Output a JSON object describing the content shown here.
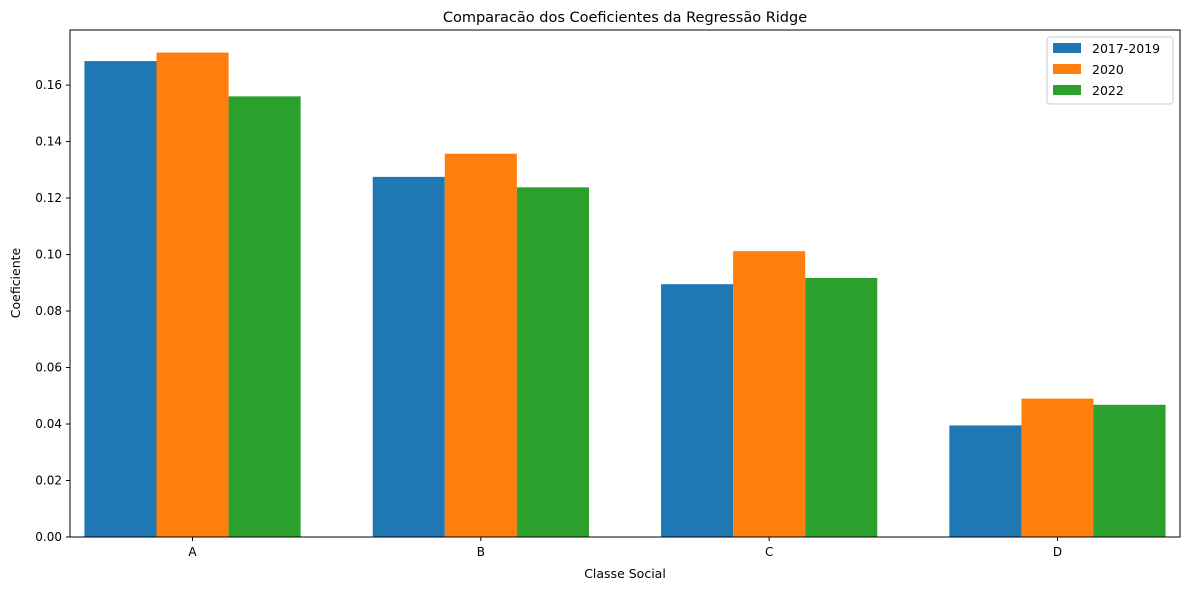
{
  "chart_data": {
    "type": "bar",
    "title": "Comparacão dos Coeficientes da Regressão Ridge",
    "xlabel": "Classe Social",
    "ylabel": "Coeficiente",
    "categories": [
      "A",
      "B",
      "C",
      "D"
    ],
    "series": [
      {
        "name": "2017-2019",
        "color": "#1f77b4",
        "values": [
          0.1685,
          0.1275,
          0.0895,
          0.0395
        ]
      },
      {
        "name": "2020",
        "color": "#ff7f0e",
        "values": [
          0.1715,
          0.1357,
          0.1012,
          0.049
        ]
      },
      {
        "name": "2022",
        "color": "#2ca02c",
        "values": [
          0.156,
          0.1238,
          0.0917,
          0.0468
        ]
      }
    ],
    "ylim": [
      0,
      0.1795
    ],
    "yticks": [
      "0.00",
      "0.02",
      "0.04",
      "0.06",
      "0.08",
      "0.10",
      "0.12",
      "0.14",
      "0.16"
    ],
    "grid": false,
    "legend_position": "top-right"
  }
}
